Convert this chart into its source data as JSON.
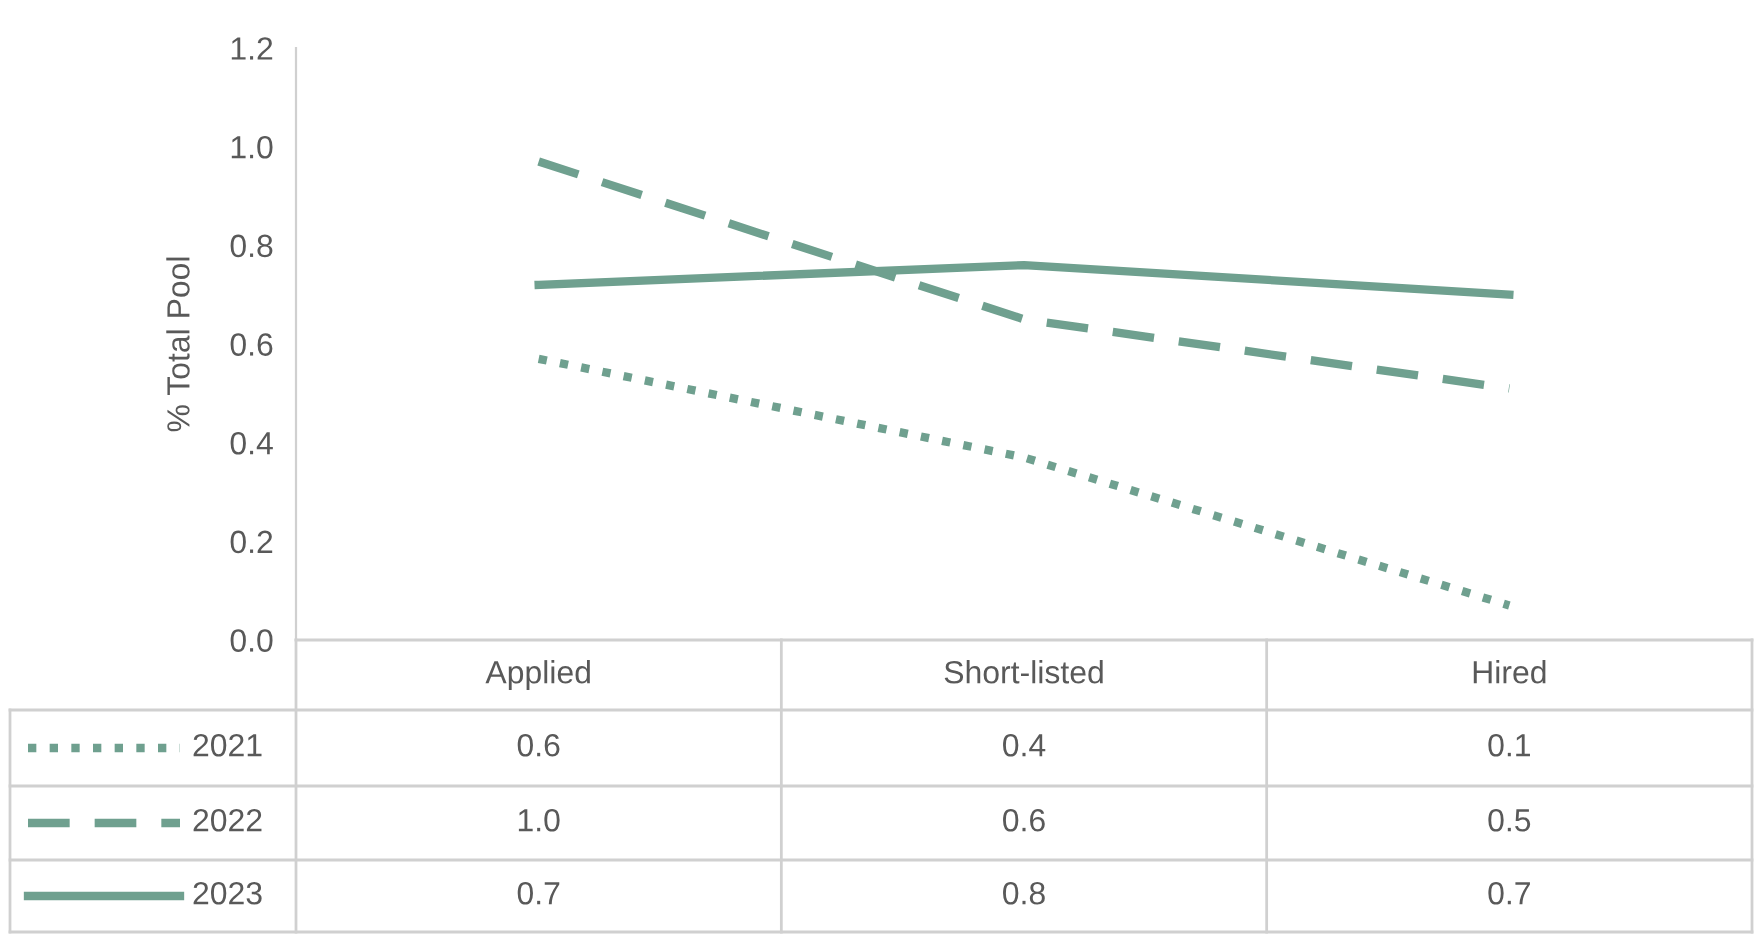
{
  "chart_data": {
    "type": "line",
    "ylabel": "% Total Pool",
    "categories": [
      "Applied",
      "Short-listed",
      "Hired"
    ],
    "series": [
      {
        "name": "2021",
        "color": "#6fa08f",
        "line_style": "dotted",
        "values": [
          0.57,
          0.37,
          0.07
        ],
        "value_labels": [
          "0.6",
          "0.4",
          "0.1"
        ]
      },
      {
        "name": "2022",
        "color": "#6fa08f",
        "line_style": "dashed",
        "values": [
          0.97,
          0.65,
          0.51
        ],
        "value_labels": [
          "1.0",
          "0.6",
          "0.5"
        ]
      },
      {
        "name": "2023",
        "color": "#6fa08f",
        "line_style": "solid",
        "values": [
          0.72,
          0.76,
          0.7
        ],
        "value_labels": [
          "0.7",
          "0.8",
          "0.7"
        ]
      }
    ],
    "ylim": [
      0,
      1.2
    ],
    "yticks": [
      {
        "value": 0,
        "label": "0.0"
      },
      {
        "value": 0.2,
        "label": "0.2"
      },
      {
        "value": 0.4,
        "label": "0.4"
      },
      {
        "value": 0.6,
        "label": "0.6"
      },
      {
        "value": 0.8,
        "label": "0.8"
      },
      {
        "value": 1.0,
        "label": "1.0"
      },
      {
        "value": 1.2,
        "label": "1.2"
      }
    ],
    "grid": false,
    "legend": "bottom left"
  }
}
